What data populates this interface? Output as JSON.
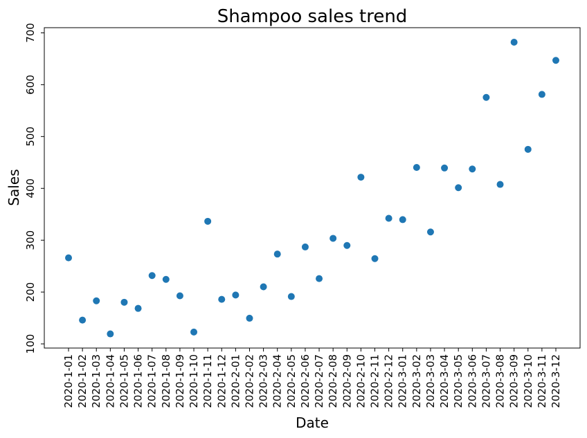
{
  "chart_data": {
    "type": "scatter",
    "title": "Shampoo sales trend",
    "xlabel": "Date",
    "ylabel": "Sales",
    "categories": [
      "2020-1-01",
      "2020-1-02",
      "2020-1-03",
      "2020-1-04",
      "2020-1-05",
      "2020-1-06",
      "2020-1-07",
      "2020-1-08",
      "2020-1-09",
      "2020-1-10",
      "2020-1-11",
      "2020-1-12",
      "2020-2-01",
      "2020-2-02",
      "2020-2-03",
      "2020-2-04",
      "2020-2-05",
      "2020-2-06",
      "2020-2-07",
      "2020-2-08",
      "2020-2-09",
      "2020-2-10",
      "2020-2-11",
      "2020-2-12",
      "2020-3-01",
      "2020-3-02",
      "2020-3-03",
      "2020-3-04",
      "2020-3-05",
      "2020-3-06",
      "2020-3-07",
      "2020-3-08",
      "2020-3-09",
      "2020-3-10",
      "2020-3-11",
      "2020-3-12"
    ],
    "values": [
      266.0,
      145.9,
      183.1,
      119.3,
      180.3,
      168.5,
      231.8,
      224.5,
      192.8,
      122.9,
      336.5,
      185.9,
      194.3,
      149.5,
      210.1,
      273.3,
      191.4,
      287.0,
      226.0,
      303.6,
      289.9,
      421.6,
      264.5,
      342.3,
      339.7,
      440.4,
      315.9,
      439.3,
      401.3,
      437.4,
      575.5,
      407.6,
      682.0,
      475.3,
      581.3,
      646.9
    ],
    "yticks": [
      100,
      200,
      300,
      400,
      500,
      600,
      700
    ],
    "ylim": [
      92,
      710
    ],
    "grid": false,
    "marker_color": "#1f77b4"
  }
}
